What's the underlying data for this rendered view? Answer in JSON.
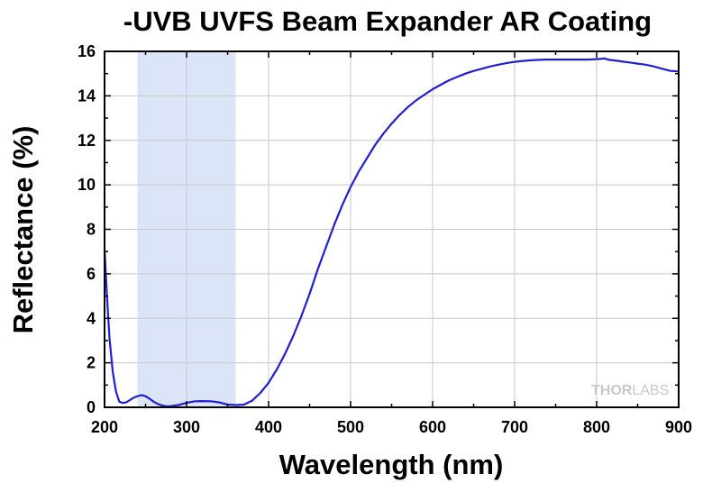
{
  "chart_data": {
    "type": "line",
    "title": "-UVB UVFS Beam Expander AR Coating",
    "xlabel": "Wavelength (nm)",
    "ylabel": "Reflectance (%)",
    "xlim": [
      200,
      900
    ],
    "ylim": [
      0,
      16
    ],
    "xticks": [
      200,
      300,
      400,
      500,
      600,
      700,
      800,
      900
    ],
    "yticks": [
      0,
      2,
      4,
      6,
      8,
      10,
      12,
      14,
      16
    ],
    "grid": true,
    "legend": "none",
    "highlight_band": {
      "x_range": [
        240,
        360
      ],
      "color": "#dce5f7"
    },
    "series": [
      {
        "color": "#1f1fd6",
        "x": [
          200,
          203,
          206,
          210,
          214,
          218,
          222,
          226,
          230,
          235,
          240,
          245,
          250,
          255,
          260,
          265,
          270,
          275,
          280,
          290,
          300,
          310,
          320,
          330,
          340,
          350,
          360,
          370,
          380,
          390,
          400,
          410,
          420,
          430,
          440,
          450,
          460,
          470,
          480,
          490,
          500,
          510,
          520,
          530,
          540,
          550,
          560,
          570,
          580,
          590,
          600,
          610,
          620,
          630,
          640,
          650,
          660,
          670,
          680,
          690,
          700,
          710,
          720,
          730,
          740,
          750,
          760,
          770,
          780,
          790,
          800,
          810,
          815,
          820,
          830,
          840,
          850,
          860,
          870,
          880,
          890,
          900
        ],
        "y": [
          7.1,
          5.0,
          3.1,
          1.6,
          0.7,
          0.25,
          0.2,
          0.22,
          0.3,
          0.42,
          0.5,
          0.55,
          0.5,
          0.38,
          0.25,
          0.15,
          0.08,
          0.05,
          0.05,
          0.1,
          0.2,
          0.27,
          0.28,
          0.27,
          0.22,
          0.12,
          0.1,
          0.12,
          0.3,
          0.65,
          1.1,
          1.7,
          2.4,
          3.2,
          4.1,
          5.1,
          6.2,
          7.2,
          8.2,
          9.1,
          9.9,
          10.6,
          11.2,
          11.8,
          12.3,
          12.75,
          13.15,
          13.5,
          13.8,
          14.05,
          14.3,
          14.5,
          14.7,
          14.85,
          15.0,
          15.12,
          15.22,
          15.32,
          15.4,
          15.47,
          15.53,
          15.57,
          15.6,
          15.62,
          15.63,
          15.63,
          15.63,
          15.63,
          15.63,
          15.63,
          15.65,
          15.68,
          15.62,
          15.6,
          15.55,
          15.5,
          15.45,
          15.4,
          15.32,
          15.22,
          15.12,
          15.1
        ]
      }
    ]
  },
  "watermark": {
    "part1": "THOR",
    "part2": "LABS"
  }
}
